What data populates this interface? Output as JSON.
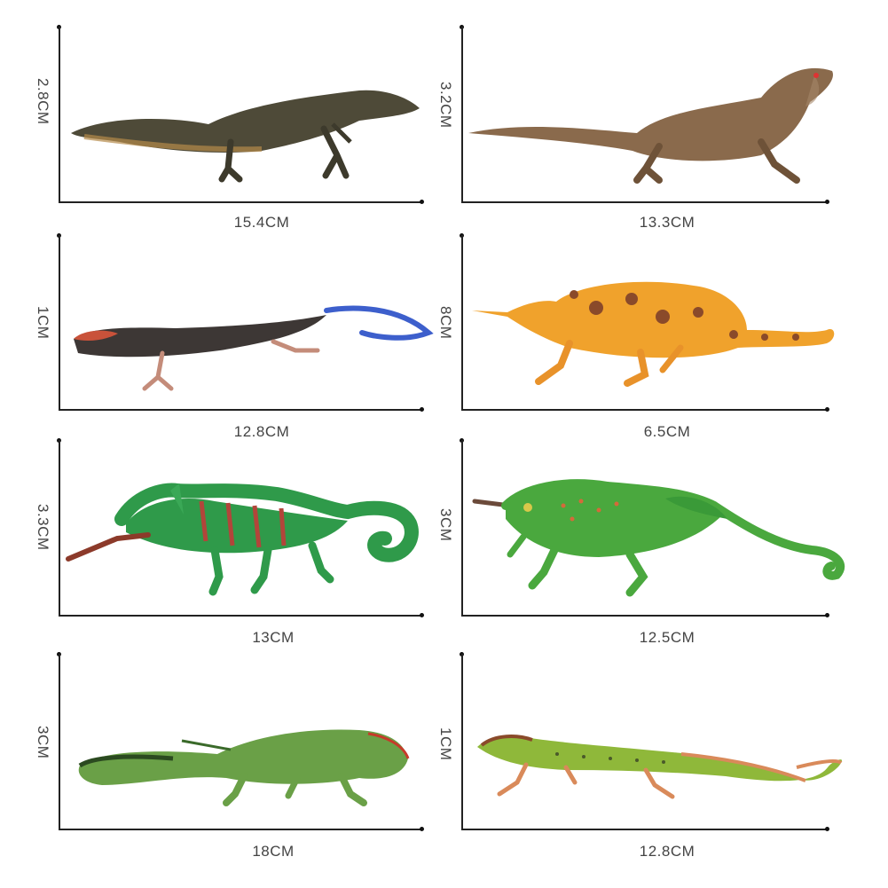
{
  "figures": [
    {
      "name": "monitor-lizard",
      "height": "2.8CM",
      "length": "15.4CM"
    },
    {
      "name": "bearded-dragon",
      "height": "3.2CM",
      "length": "13.3CM"
    },
    {
      "name": "blue-tailed-skink",
      "height": "1CM",
      "length": "12.8CM"
    },
    {
      "name": "orange-chameleon",
      "height": "8CM",
      "length": "6.5CM"
    },
    {
      "name": "veiled-chameleon",
      "height": "3.3CM",
      "length": "13CM"
    },
    {
      "name": "jacksons-chameleon",
      "height": "3CM",
      "length": "12.5CM"
    },
    {
      "name": "green-iguana",
      "height": "3CM",
      "length": "18CM"
    },
    {
      "name": "green-lizard",
      "height": "1CM",
      "length": "12.8CM"
    }
  ],
  "colors": {
    "axis": "#222222",
    "label": "#444444",
    "monitor": "#4e4a38",
    "dragon": "#8a6a4c",
    "skink": "#3d3735",
    "skink_tail": "#3d5fcc",
    "orange_chameleon": "#f0a22c",
    "veiled_chameleon": "#2f9a4a",
    "jackson": "#4aa83e",
    "iguana": "#6aa047",
    "green_lizard": "#8fb83a"
  }
}
